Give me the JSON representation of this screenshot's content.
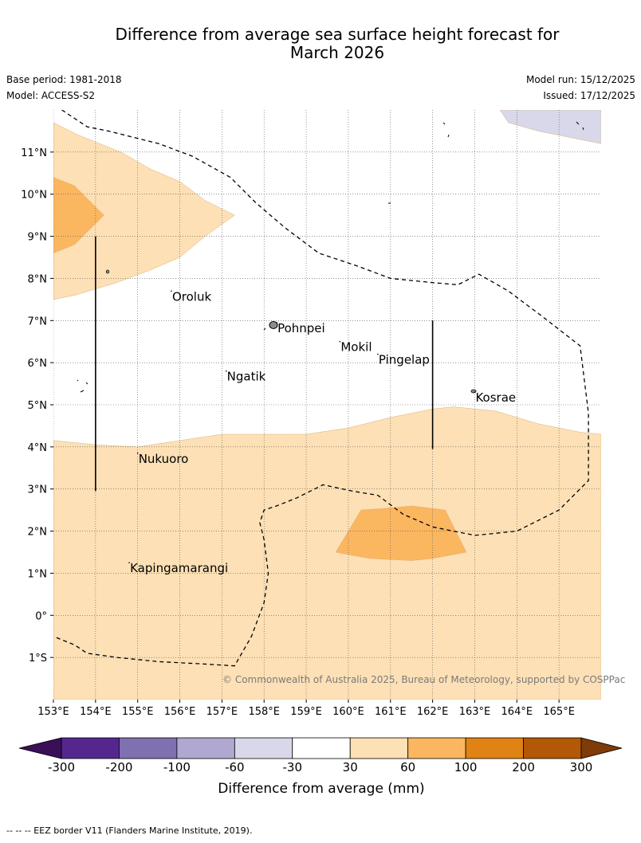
{
  "title": "Difference from average sea surface height forecast for\nMarch 2026",
  "base_period": "Base period: 1981-2018",
  "model": "Model: ACCESS-S2",
  "model_run": "Model run: 15/12/2025",
  "issued": "Issued: 17/12/2025",
  "copyright": "© Commonwealth of Australia 2025, Bureau of Meteorology, supported by COSPPac",
  "footer_note": "--  --  -- EEZ border V11 (Flanders Marine Institute, 2019).",
  "colorbar": {
    "title": "Difference from average (mm)",
    "ticks": [
      "-300",
      "-200",
      "-100",
      "-60",
      "-30",
      "30",
      "60",
      "100",
      "200",
      "300"
    ],
    "colors": [
      "#54278f",
      "#7f70af",
      "#b0a8d0",
      "#d8d8ea",
      "#ffffff",
      "#fde0b5",
      "#fbb660",
      "#e08214",
      "#b35806"
    ],
    "extend_low_color": "#3b0f57",
    "extend_high_color": "#7f3b08"
  },
  "chart_data": {
    "type": "map",
    "title": "Difference from average sea surface height forecast for March 2026",
    "x_ticks": [
      {
        "value": 153,
        "label": "153°E"
      },
      {
        "value": 154,
        "label": "154°E"
      },
      {
        "value": 155,
        "label": "155°E"
      },
      {
        "value": 156,
        "label": "156°E"
      },
      {
        "value": 157,
        "label": "157°E"
      },
      {
        "value": 158,
        "label": "158°E"
      },
      {
        "value": 159,
        "label": "159°E"
      },
      {
        "value": 160,
        "label": "160°E"
      },
      {
        "value": 161,
        "label": "161°E"
      },
      {
        "value": 162,
        "label": "162°E"
      },
      {
        "value": 163,
        "label": "163°E"
      },
      {
        "value": 164,
        "label": "164°E"
      },
      {
        "value": 165,
        "label": "165°E"
      }
    ],
    "y_ticks": [
      {
        "value": 11,
        "label": "11°N"
      },
      {
        "value": 10,
        "label": "10°N"
      },
      {
        "value": 9,
        "label": "9°N"
      },
      {
        "value": 8,
        "label": "8°N"
      },
      {
        "value": 7,
        "label": "7°N"
      },
      {
        "value": 6,
        "label": "6°N"
      },
      {
        "value": 5,
        "label": "5°N"
      },
      {
        "value": 4,
        "label": "4°N"
      },
      {
        "value": 3,
        "label": "3°N"
      },
      {
        "value": 2,
        "label": "2°N"
      },
      {
        "value": 1,
        "label": "1°N"
      },
      {
        "value": 0,
        "label": "0°"
      },
      {
        "value": -1,
        "label": "1°S"
      }
    ],
    "lon_range": [
      153,
      166
    ],
    "lat_range": [
      -2,
      12
    ],
    "places": [
      {
        "name": "Oroluk",
        "lon": 155.8,
        "lat": 7.7
      },
      {
        "name": "Pohnpei",
        "lon": 158.3,
        "lat": 6.95
      },
      {
        "name": "Mokil",
        "lon": 159.8,
        "lat": 6.5
      },
      {
        "name": "Pingelap",
        "lon": 160.7,
        "lat": 6.2
      },
      {
        "name": "Ngatik",
        "lon": 157.1,
        "lat": 5.8
      },
      {
        "name": "Kosrae",
        "lon": 163.0,
        "lat": 5.3
      },
      {
        "name": "Nukuoro",
        "lon": 155.0,
        "lat": 3.85
      },
      {
        "name": "Kapingamarangi",
        "lon": 154.8,
        "lat": 1.25
      }
    ],
    "contour_regions": [
      {
        "category": "30 to 60",
        "color": "#fde0b5",
        "points": [
          [
            153,
            11.7
          ],
          [
            153.6,
            11.4
          ],
          [
            154.6,
            11.0
          ],
          [
            155.3,
            10.6
          ],
          [
            156.0,
            10.3
          ],
          [
            156.6,
            9.85
          ],
          [
            157.3,
            9.5
          ],
          [
            156.6,
            9.0
          ],
          [
            156.0,
            8.5
          ],
          [
            155.3,
            8.2
          ],
          [
            154.5,
            7.9
          ],
          [
            153.5,
            7.6
          ],
          [
            153,
            7.5
          ]
        ]
      },
      {
        "category": "60 to 100",
        "color": "#fbb660",
        "points": [
          [
            153,
            10.4
          ],
          [
            153.5,
            10.2
          ],
          [
            154.2,
            9.5
          ],
          [
            153.5,
            8.8
          ],
          [
            153,
            8.6
          ]
        ]
      },
      {
        "category": "30 to 60",
        "color": "#fde0b5",
        "points": [
          [
            153,
            4.15
          ],
          [
            154.0,
            4.05
          ],
          [
            155.0,
            4.0
          ],
          [
            156.0,
            4.15
          ],
          [
            157.0,
            4.3
          ],
          [
            158.0,
            4.3
          ],
          [
            159.0,
            4.3
          ],
          [
            160.0,
            4.45
          ],
          [
            161.0,
            4.7
          ],
          [
            162.0,
            4.9
          ],
          [
            162.5,
            4.95
          ],
          [
            163.5,
            4.85
          ],
          [
            164.5,
            4.55
          ],
          [
            165.5,
            4.35
          ],
          [
            166,
            4.3
          ],
          [
            166,
            -2
          ],
          [
            153,
            -2
          ]
        ]
      },
      {
        "category": "60 to 100",
        "color": "#fbb660",
        "points": [
          [
            159.7,
            1.5
          ],
          [
            160.3,
            2.5
          ],
          [
            161.0,
            2.55
          ],
          [
            161.5,
            2.6
          ],
          [
            162.3,
            2.5
          ],
          [
            162.8,
            1.5
          ],
          [
            162.0,
            1.35
          ],
          [
            161.5,
            1.3
          ],
          [
            160.5,
            1.35
          ]
        ]
      },
      {
        "category": "-60 to -30",
        "color": "#d8d8ea",
        "points": [
          [
            163.6,
            12
          ],
          [
            166,
            12
          ],
          [
            166,
            11.2
          ],
          [
            165.5,
            11.3
          ],
          [
            164.5,
            11.5
          ],
          [
            163.8,
            11.7
          ]
        ]
      }
    ],
    "eez_border": [
      [
        [
          153.2,
          12
        ],
        [
          153.8,
          11.6
        ],
        [
          154.3,
          11.5
        ],
        [
          155.5,
          11.2
        ],
        [
          156.3,
          10.9
        ],
        [
          157.2,
          10.4
        ],
        [
          157.8,
          9.8
        ],
        [
          158.5,
          9.2
        ],
        [
          159.3,
          8.6
        ],
        [
          160.2,
          8.3
        ],
        [
          161.0,
          8.0
        ],
        [
          162.0,
          7.9
        ],
        [
          162.6,
          7.85
        ],
        [
          163.1,
          8.1
        ],
        [
          163.8,
          7.7
        ],
        [
          164.6,
          7.1
        ],
        [
          165.5,
          6.4
        ],
        [
          165.7,
          4.8
        ],
        [
          165.7,
          3.2
        ],
        [
          165.0,
          2.5
        ],
        [
          164.0,
          2.0
        ],
        [
          163.0,
          1.9
        ],
        [
          162.0,
          2.1
        ],
        [
          161.3,
          2.4
        ],
        [
          160.7,
          2.85
        ],
        [
          160.1,
          2.95
        ],
        [
          159.4,
          3.1
        ],
        [
          158.8,
          2.8
        ],
        [
          158.3,
          2.6
        ],
        [
          158.0,
          2.5
        ],
        [
          157.9,
          2.2
        ],
        [
          158.0,
          1.8
        ],
        [
          158.1,
          1.0
        ],
        [
          158.0,
          0.3
        ],
        [
          157.7,
          -0.5
        ],
        [
          157.3,
          -1.2
        ],
        [
          156.5,
          -1.15
        ],
        [
          155.5,
          -1.1
        ],
        [
          154.5,
          -1.0
        ],
        [
          153.8,
          -0.9
        ],
        [
          153.5,
          -0.7
        ],
        [
          153,
          -0.5
        ]
      ]
    ],
    "vertical_markers": [
      {
        "lon": 154.0,
        "lat_from": 2.95,
        "lat_to": 9.0
      },
      {
        "lon": 162.0,
        "lat_from": 3.95,
        "lat_to": 7.0
      }
    ]
  }
}
